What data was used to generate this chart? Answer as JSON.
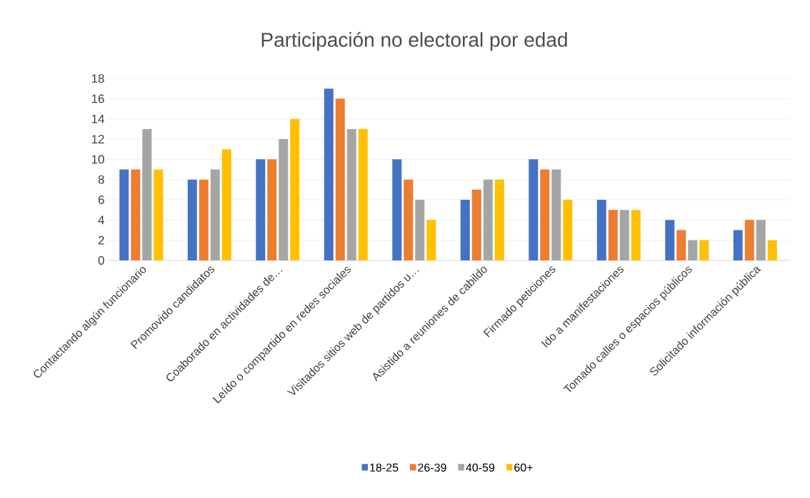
{
  "chart_data": {
    "type": "bar",
    "title": "Participación no electoral por edad",
    "categories": [
      "Contactando algún funcionario",
      "Promovido candidatos",
      "Coaborado en actividades de…",
      "Leído o compartido en redes sociales",
      "Visitados sitios web de partidos u…",
      "Asistido a reuniones de cabildo",
      "Firmado peticiones",
      "Ido a manifestaciones",
      "Tomado calles o espacios públicos",
      "Solicitado información pública"
    ],
    "series": [
      {
        "name": "18-25",
        "color": "#4472c4",
        "values": [
          9,
          8,
          10,
          17,
          10,
          6,
          10,
          6,
          4,
          3
        ]
      },
      {
        "name": "26-39",
        "color": "#ed7d31",
        "values": [
          9,
          8,
          10,
          16,
          8,
          7,
          9,
          5,
          3,
          4
        ]
      },
      {
        "name": "40-59",
        "color": "#a5a5a5",
        "values": [
          13,
          9,
          12,
          13,
          6,
          8,
          9,
          5,
          2,
          4
        ]
      },
      {
        "name": "60+",
        "color": "#ffc000",
        "values": [
          9,
          11,
          14,
          13,
          4,
          8,
          6,
          5,
          2,
          2
        ]
      }
    ],
    "ylim": [
      0,
      18
    ],
    "yticks": [
      0,
      2,
      4,
      6,
      8,
      10,
      12,
      14,
      16,
      18
    ],
    "grid": "y",
    "legend": "bottom"
  }
}
